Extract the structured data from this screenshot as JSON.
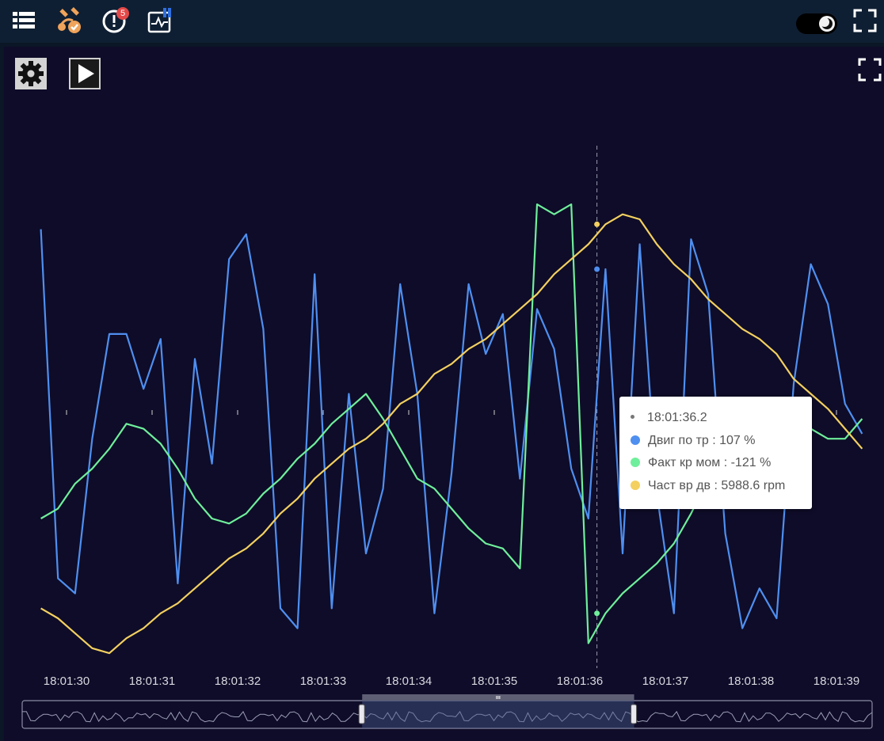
{
  "toolbar": {
    "notification_count": "5",
    "icons": [
      "list-icon",
      "satellite-check-icon",
      "alert-icon",
      "activity-icon",
      "fullscreen-icon"
    ],
    "theme": "dark"
  },
  "controls": {
    "icons": [
      "gear-icon",
      "play-icon",
      "fullscreen-icon"
    ]
  },
  "colors": {
    "series1": "#4f8ff0",
    "series2": "#6fef9b",
    "series3": "#f3d060",
    "background": "#0e0c28"
  },
  "tooltip": {
    "time": "18:01:36.2",
    "rows": [
      {
        "text": "Двиг по тр : 107 %",
        "color": "#4f8ff0"
      },
      {
        "text": "Факт кр мом : -121 %",
        "color": "#6fef9b"
      },
      {
        "text": "Част вр дв : 5988.6 rpm",
        "color": "#f3d060"
      }
    ]
  },
  "chart_data": {
    "type": "line",
    "x_tick_labels": [
      "18:01:30",
      "18:01:31",
      "18:01:32",
      "18:01:33",
      "18:01:34",
      "18:01:35",
      "18:01:36",
      "18:01:37",
      "18:01:38",
      "18:01:39"
    ],
    "x_start": 29.7,
    "x_step": 0.2,
    "cursor_x": 36.2,
    "ylim": [
      0,
      1
    ],
    "grid": false,
    "series": [
      {
        "name": "Двиг по тр",
        "values": [
          0.88,
          0.18,
          0.15,
          0.46,
          0.67,
          0.67,
          0.56,
          0.66,
          0.17,
          0.62,
          0.41,
          0.82,
          0.87,
          0.68,
          0.12,
          0.08,
          0.79,
          0.12,
          0.55,
          0.23,
          0.36,
          0.77,
          0.55,
          0.11,
          0.39,
          0.77,
          0.63,
          0.71,
          0.38,
          0.72,
          0.64,
          0.4,
          0.3,
          0.8,
          0.23,
          0.85,
          0.35,
          0.11,
          0.86,
          0.75,
          0.27,
          0.08,
          0.16,
          0.1,
          0.57,
          0.81,
          0.73,
          0.53,
          0.47
        ]
      },
      {
        "name": "Факт кр мом",
        "values": [
          0.3,
          0.32,
          0.37,
          0.4,
          0.44,
          0.49,
          0.48,
          0.45,
          0.4,
          0.34,
          0.3,
          0.29,
          0.31,
          0.35,
          0.38,
          0.42,
          0.45,
          0.49,
          0.52,
          0.55,
          0.5,
          0.44,
          0.38,
          0.36,
          0.32,
          0.28,
          0.25,
          0.24,
          0.2,
          0.93,
          0.91,
          0.93,
          0.05,
          0.11,
          0.15,
          0.18,
          0.21,
          0.25,
          0.31,
          0.38,
          0.43,
          0.45,
          0.45,
          0.47,
          0.5,
          0.48,
          0.46,
          0.46,
          0.5
        ]
      },
      {
        "name": "Част вр дв",
        "values": [
          0.12,
          0.1,
          0.07,
          0.04,
          0.03,
          0.06,
          0.08,
          0.11,
          0.13,
          0.16,
          0.19,
          0.22,
          0.24,
          0.27,
          0.31,
          0.34,
          0.38,
          0.41,
          0.44,
          0.46,
          0.49,
          0.53,
          0.55,
          0.59,
          0.61,
          0.64,
          0.66,
          0.69,
          0.72,
          0.75,
          0.79,
          0.82,
          0.85,
          0.89,
          0.91,
          0.9,
          0.85,
          0.81,
          0.78,
          0.74,
          0.71,
          0.68,
          0.66,
          0.63,
          0.58,
          0.55,
          0.52,
          0.48,
          0.44
        ]
      }
    ],
    "overview_window": [
      0.4,
      0.72
    ]
  }
}
